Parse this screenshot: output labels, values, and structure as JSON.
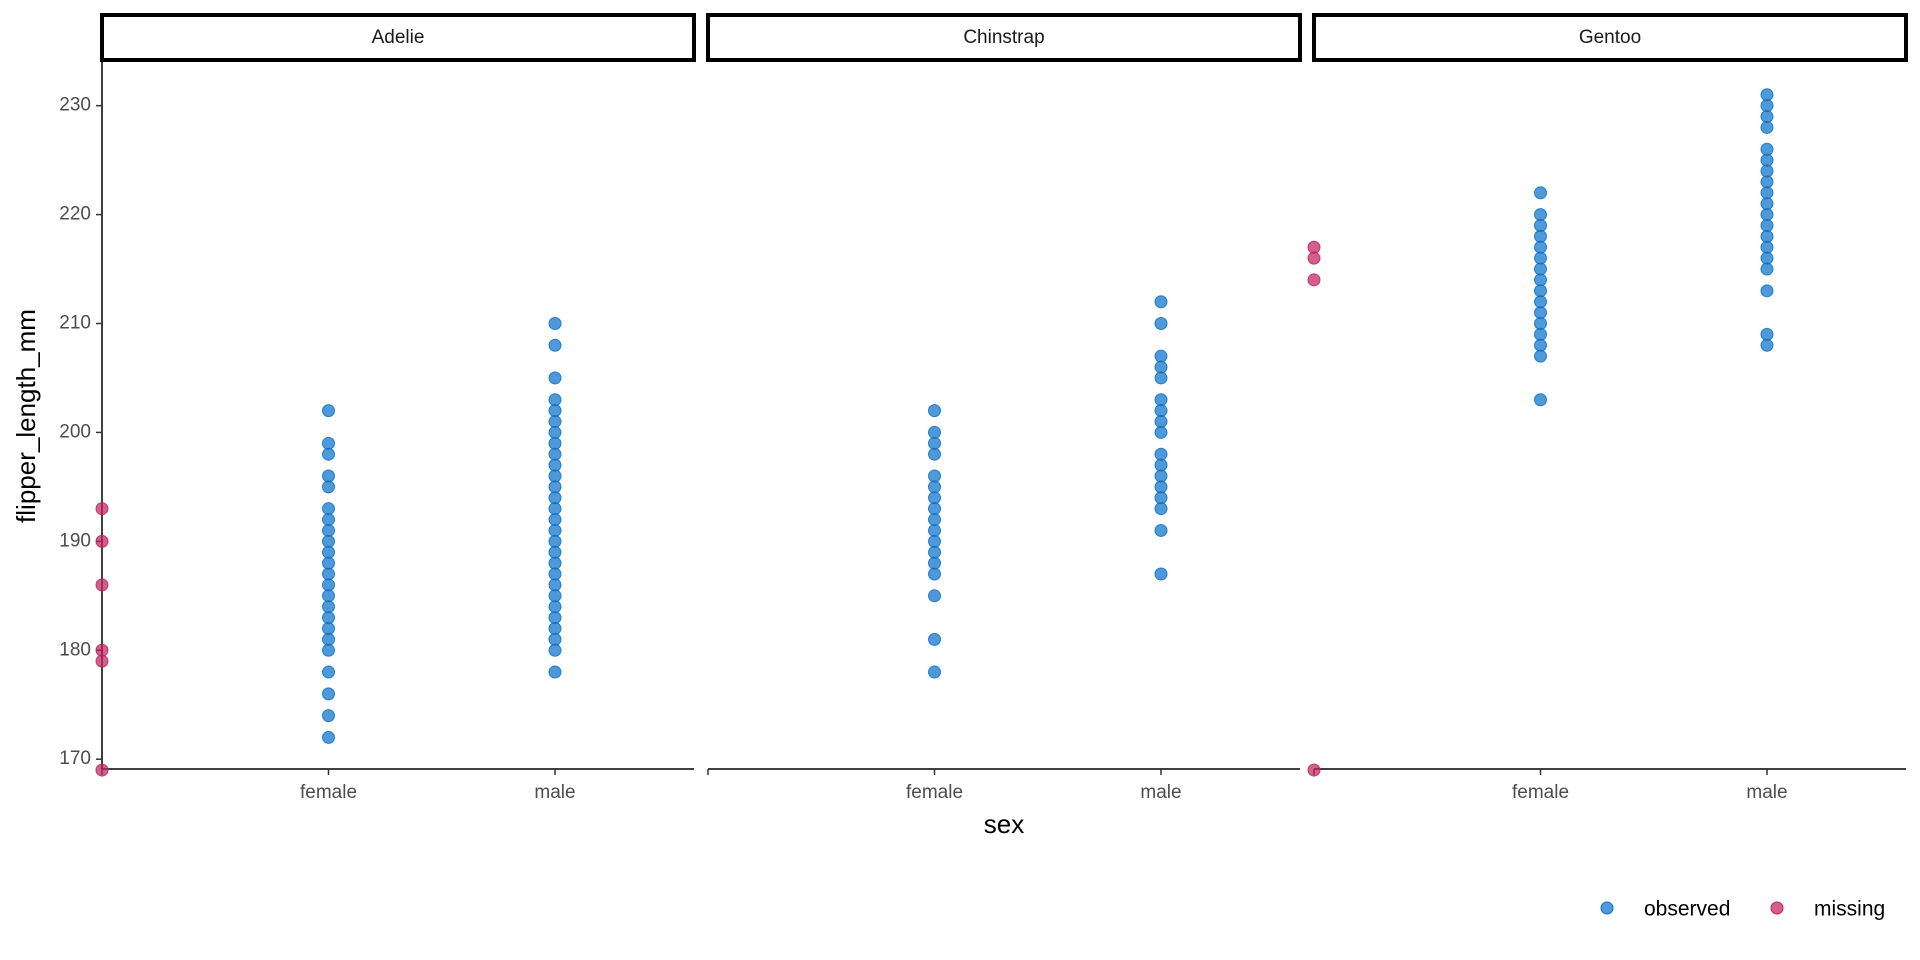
{
  "chart_data": {
    "type": "scatter",
    "x_label": "sex",
    "y_label": "flipper_length_mm",
    "categories": [
      null,
      "female",
      "male"
    ],
    "ylim": [
      169.1,
      234.1
    ],
    "yticks": [
      170,
      180,
      190,
      200,
      210,
      220,
      230
    ],
    "legend_position": "bottom-right",
    "facets": [
      {
        "strip": "Adelie",
        "series": [
          {
            "name": "observed",
            "color": "#0b72c9",
            "x": [
              "female",
              "female",
              "female",
              "female",
              "female",
              "female",
              "female",
              "female",
              "female",
              "female",
              "female",
              "female",
              "female",
              "female",
              "female",
              "female",
              "female",
              "female",
              "female",
              "female",
              "female",
              "female",
              "female",
              "male",
              "male",
              "male",
              "male",
              "male",
              "male",
              "male",
              "male",
              "male",
              "male",
              "male",
              "male",
              "male",
              "male",
              "male",
              "male",
              "male",
              "male",
              "male",
              "male",
              "male",
              "male",
              "male",
              "male",
              "male",
              "male",
              "male",
              "male"
            ],
            "values": [
              202,
              199,
              198,
              196,
              195,
              193,
              192,
              191,
              190,
              189,
              188,
              187,
              186,
              185,
              184,
              183,
              182,
              181,
              180,
              178,
              176,
              174,
              172,
              210,
              208,
              205,
              203,
              202,
              201,
              200,
              199,
              198,
              197,
              196,
              195,
              194,
              193,
              192,
              191,
              190,
              189,
              188,
              187,
              186,
              185,
              184,
              183,
              182,
              181,
              180,
              178
            ]
          },
          {
            "name": "missing",
            "color": "#c1215f",
            "x": [
              null,
              null,
              null,
              null,
              null,
              null
            ],
            "values": [
              193,
              190,
              186,
              180,
              179,
              169
            ]
          }
        ]
      },
      {
        "strip": "Chinstrap",
        "series": [
          {
            "name": "observed",
            "color": "#0b72c9",
            "x": [
              "female",
              "female",
              "female",
              "female",
              "female",
              "female",
              "female",
              "female",
              "female",
              "female",
              "female",
              "female",
              "female",
              "female",
              "female",
              "female",
              "female",
              "male",
              "male",
              "male",
              "male",
              "male",
              "male",
              "male",
              "male",
              "male",
              "male",
              "male",
              "male",
              "male",
              "male",
              "male",
              "male",
              "male"
            ],
            "values": [
              202,
              200,
              199,
              198,
              196,
              195,
              194,
              193,
              192,
              191,
              190,
              189,
              188,
              187,
              185,
              181,
              178,
              212,
              210,
              207,
              206,
              205,
              203,
              202,
              201,
              200,
              198,
              197,
              196,
              195,
              194,
              193,
              191,
              187
            ]
          }
        ]
      },
      {
        "strip": "Gentoo",
        "series": [
          {
            "name": "observed",
            "color": "#0b72c9",
            "x": [
              "female",
              "female",
              "female",
              "female",
              "female",
              "female",
              "female",
              "female",
              "female",
              "female",
              "female",
              "female",
              "female",
              "female",
              "female",
              "female",
              "male",
              "male",
              "male",
              "male",
              "male",
              "male",
              "male",
              "male",
              "male",
              "male",
              "male",
              "male",
              "male",
              "male",
              "male",
              "male",
              "male",
              "male",
              "male"
            ],
            "values": [
              222,
              220,
              219,
              218,
              217,
              216,
              215,
              214,
              213,
              212,
              211,
              210,
              209,
              208,
              207,
              203,
              231,
              230,
              229,
              228,
              226,
              225,
              224,
              223,
              222,
              221,
              220,
              219,
              218,
              217,
              216,
              215,
              213,
              209,
              208
            ]
          },
          {
            "name": "missing",
            "color": "#c1215f",
            "x": [
              null,
              null,
              null,
              null
            ],
            "values": [
              217,
              216,
              214,
              169
            ]
          }
        ]
      }
    ]
  }
}
